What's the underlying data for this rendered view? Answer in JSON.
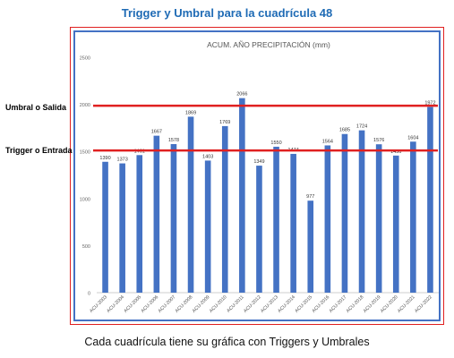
{
  "page_title": "Trigger y Umbral para la cuadrícula 48",
  "side_labels": {
    "umbral": "Umbral o Salida",
    "trigger": "Trigger o Entrada"
  },
  "footer": "Cada cuadrícula tiene su gráfica con Triggers y Umbrales",
  "colors": {
    "bar": "#4472c4",
    "threshold_line": "#e02020",
    "frame_outer": "#e02020",
    "frame_inner": "#4472c4",
    "title": "#1f6bb5"
  },
  "chart_data": {
    "type": "bar",
    "title": "ACUM.  AÑO PRECIPITACIÓN (mm)",
    "categories": [
      "ACU-2003",
      "ACU-2004",
      "ACU-2005",
      "ACU-2006",
      "ACU-2007",
      "ACU-2008",
      "ACU-2009",
      "ACU-2010",
      "ACU-2011",
      "ACU-2012",
      "ACU-2013",
      "ACU-2014",
      "ACU-2015",
      "ACU-2016",
      "ACU-2017",
      "ACU-2018",
      "ACU-2019",
      "ACU-2020",
      "ACU-2021",
      "ACU-2022"
    ],
    "values": [
      1390,
      1373,
      1461,
      1667,
      1578,
      1869,
      1403,
      1769,
      2066,
      1349,
      1550,
      1474,
      977,
      1564,
      1685,
      1724,
      1576,
      1456,
      1604,
      1972
    ],
    "ylim": [
      0,
      2500
    ],
    "yticks": [
      0,
      500,
      1000,
      1500,
      2000,
      2500
    ],
    "grid": false,
    "reference_lines": [
      {
        "label": "Umbral o Salida",
        "value": 1985
      },
      {
        "label": "Trigger o Entrada",
        "value": 1510
      }
    ]
  }
}
